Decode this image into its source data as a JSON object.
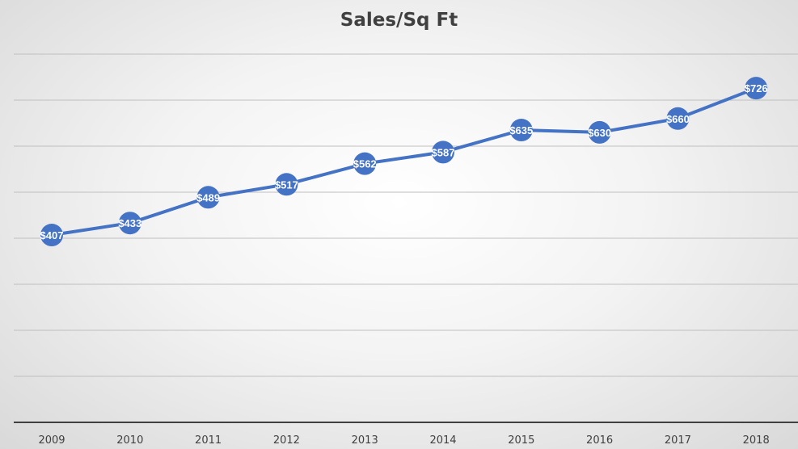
{
  "chart_data": {
    "type": "line",
    "title": "Sales/Sq Ft",
    "xlabel": "",
    "ylabel": "",
    "categories": [
      "2009",
      "2010",
      "2011",
      "2012",
      "2013",
      "2014",
      "2015",
      "2016",
      "2017",
      "2018"
    ],
    "series": [
      {
        "values": [
          407,
          433,
          489,
          517,
          562,
          587,
          635,
          630,
          660,
          726
        ],
        "labels": [
          "$407",
          "$433",
          "$489",
          "$517",
          "$562",
          "$587",
          "$635",
          "$630",
          "$660",
          "$726"
        ]
      }
    ],
    "ylim": [
      0,
      800
    ],
    "gridlines": true,
    "legend": "none",
    "colors": {
      "line": "#4472C4",
      "marker": "#4472C4",
      "gridline": "#bfbfbf",
      "axis": "#404040"
    }
  }
}
